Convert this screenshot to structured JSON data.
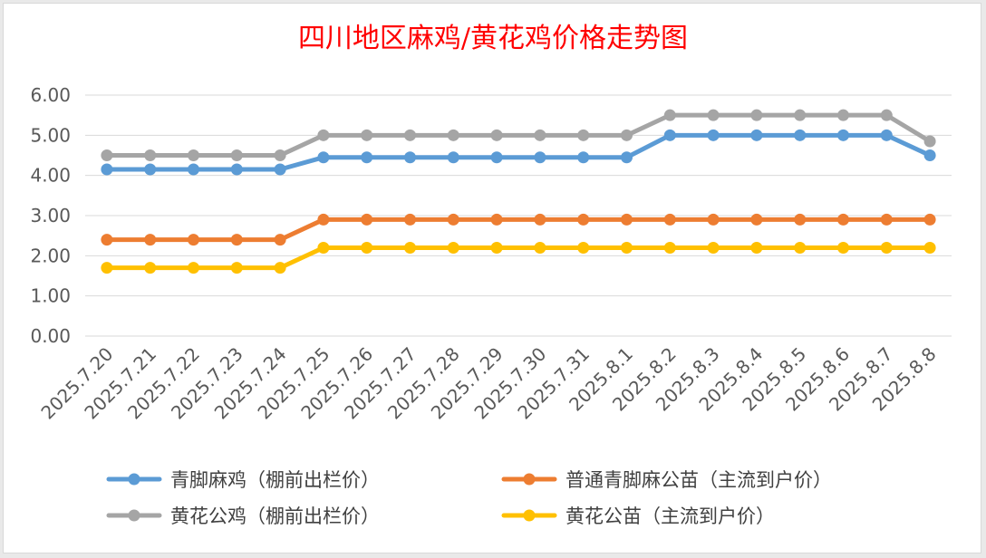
{
  "chart_data": {
    "type": "line",
    "title": "四川地区麻鸡/黄花鸡价格走势图",
    "xlabel": "",
    "ylabel": "",
    "ylim": [
      0,
      6
    ],
    "yticks": [
      "0.00",
      "1.00",
      "2.00",
      "3.00",
      "4.00",
      "5.00",
      "6.00"
    ],
    "grid": true,
    "legend_position": "bottom",
    "categories": [
      "2025.7.20",
      "2025.7.21",
      "2025.7.22",
      "2025.7.23",
      "2025.7.24",
      "2025.7.25",
      "2025.7.26",
      "2025.7.27",
      "2025.7.28",
      "2025.7.29",
      "2025.7.30",
      "2025.7.31",
      "2025.8.1",
      "2025.8.2",
      "2025.8.3",
      "2025.8.4",
      "2025.8.5",
      "2025.8.6",
      "2025.8.7",
      "2025.8.8"
    ],
    "series": [
      {
        "name": "青脚麻鸡（棚前出栏价）",
        "color": "#5b9bd5",
        "values": [
          4.15,
          4.15,
          4.15,
          4.15,
          4.15,
          4.45,
          4.45,
          4.45,
          4.45,
          4.45,
          4.45,
          4.45,
          4.45,
          5.0,
          5.0,
          5.0,
          5.0,
          5.0,
          5.0,
          4.5
        ]
      },
      {
        "name": "普通青脚麻公苗（主流到户价）",
        "color": "#ed7d31",
        "values": [
          2.4,
          2.4,
          2.4,
          2.4,
          2.4,
          2.9,
          2.9,
          2.9,
          2.9,
          2.9,
          2.9,
          2.9,
          2.9,
          2.9,
          2.9,
          2.9,
          2.9,
          2.9,
          2.9,
          2.9
        ]
      },
      {
        "name": "黄花公鸡（棚前出栏价）",
        "color": "#a5a5a5",
        "values": [
          4.5,
          4.5,
          4.5,
          4.5,
          4.5,
          5.0,
          5.0,
          5.0,
          5.0,
          5.0,
          5.0,
          5.0,
          5.0,
          5.5,
          5.5,
          5.5,
          5.5,
          5.5,
          5.5,
          4.85
        ]
      },
      {
        "name": "黄花公苗（主流到户价）",
        "color": "#ffc000",
        "values": [
          1.7,
          1.7,
          1.7,
          1.7,
          1.7,
          2.2,
          2.2,
          2.2,
          2.2,
          2.2,
          2.2,
          2.2,
          2.2,
          2.2,
          2.2,
          2.2,
          2.2,
          2.2,
          2.2,
          2.2
        ]
      }
    ]
  }
}
